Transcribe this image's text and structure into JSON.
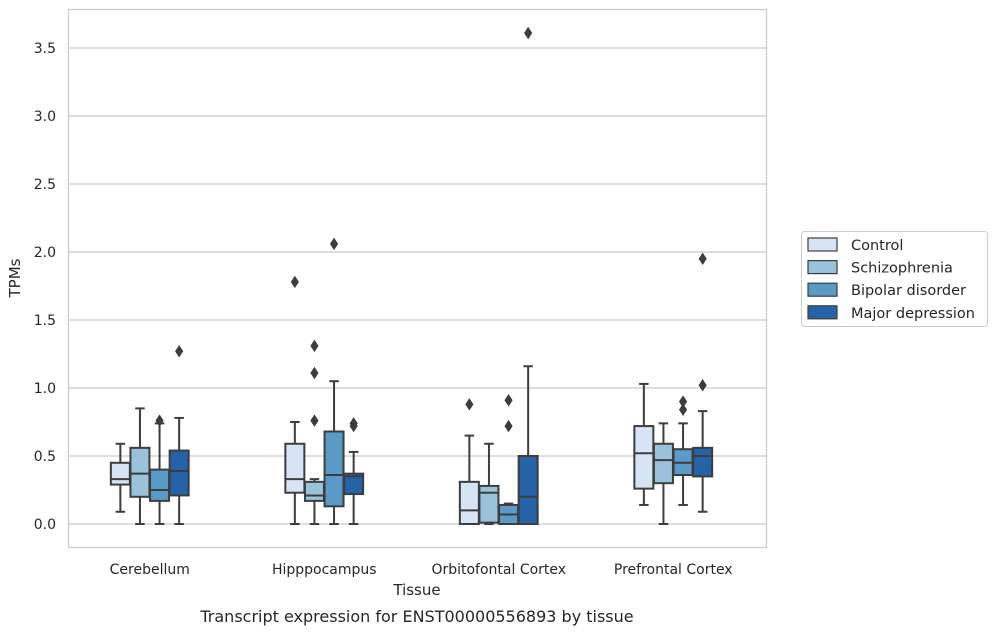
{
  "chart_data": {
    "type": "box",
    "xlabel": "Tissue",
    "ylabel": "TPMs",
    "caption": "Transcript expression for ENST00000556893 by tissue",
    "ylim": [
      -0.18,
      3.75
    ],
    "yticks": [
      "0.0",
      "0.5",
      "1.0",
      "1.5",
      "2.0",
      "2.5",
      "3.0",
      "3.5"
    ],
    "ytick_values": [
      0.0,
      0.5,
      1.0,
      1.5,
      2.0,
      2.5,
      3.0,
      3.5
    ],
    "grid": "horizontal",
    "legend_position": "right",
    "categories": [
      "Cerebellum",
      "Hipppocampus",
      "Orbitofontal Cortex",
      "Prefrontal Cortex"
    ],
    "series": [
      {
        "name": "Control",
        "color": "#d6e4f3",
        "boxes": [
          {
            "whislo": 0.09,
            "q1": 0.29,
            "med": 0.33,
            "q3": 0.45,
            "whishi": 0.59,
            "fliers": []
          },
          {
            "whislo": 0.0,
            "q1": 0.23,
            "med": 0.33,
            "q3": 0.59,
            "whishi": 0.75,
            "fliers": [
              1.78
            ]
          },
          {
            "whislo": 0.0,
            "q1": 0.0,
            "med": 0.1,
            "q3": 0.31,
            "whishi": 0.65,
            "fliers": [
              0.88
            ]
          },
          {
            "whislo": 0.14,
            "q1": 0.26,
            "med": 0.52,
            "q3": 0.72,
            "whishi": 1.03,
            "fliers": []
          }
        ]
      },
      {
        "name": "Schizophrenia",
        "color": "#9ac2da",
        "boxes": [
          {
            "whislo": 0.0,
            "q1": 0.2,
            "med": 0.37,
            "q3": 0.56,
            "whishi": 0.85,
            "fliers": []
          },
          {
            "whislo": 0.0,
            "q1": 0.17,
            "med": 0.21,
            "q3": 0.31,
            "whishi": 0.33,
            "fliers": [
              0.76,
              1.11,
              1.31
            ]
          },
          {
            "whislo": 0.0,
            "q1": 0.01,
            "med": 0.23,
            "q3": 0.28,
            "whishi": 0.59,
            "fliers": []
          },
          {
            "whislo": 0.0,
            "q1": 0.3,
            "med": 0.47,
            "q3": 0.59,
            "whishi": 0.74,
            "fliers": []
          }
        ]
      },
      {
        "name": "Bipolar disorder",
        "color": "#5a9ac6",
        "boxes": [
          {
            "whislo": 0.0,
            "q1": 0.17,
            "med": 0.25,
            "q3": 0.4,
            "whishi": 0.74,
            "fliers": [
              0.76
            ]
          },
          {
            "whislo": 0.0,
            "q1": 0.13,
            "med": 0.36,
            "q3": 0.68,
            "whishi": 1.05,
            "fliers": [
              2.06
            ]
          },
          {
            "whislo": 0.0,
            "q1": 0.0,
            "med": 0.07,
            "q3": 0.14,
            "whishi": 0.15,
            "fliers": [
              0.72,
              0.91
            ]
          },
          {
            "whislo": 0.14,
            "q1": 0.36,
            "med": 0.45,
            "q3": 0.55,
            "whishi": 0.74,
            "fliers": [
              0.84,
              0.9
            ]
          }
        ]
      },
      {
        "name": "Major depression",
        "color": "#2563a8",
        "boxes": [
          {
            "whislo": 0.0,
            "q1": 0.21,
            "med": 0.39,
            "q3": 0.54,
            "whishi": 0.78,
            "fliers": [
              1.27
            ]
          },
          {
            "whislo": 0.0,
            "q1": 0.22,
            "med": 0.35,
            "q3": 0.37,
            "whishi": 0.53,
            "fliers": [
              0.72,
              0.74
            ]
          },
          {
            "whislo": 0.0,
            "q1": 0.0,
            "med": 0.2,
            "q3": 0.5,
            "whishi": 1.16,
            "fliers": [
              3.61
            ]
          },
          {
            "whislo": 0.09,
            "q1": 0.35,
            "med": 0.5,
            "q3": 0.56,
            "whishi": 0.83,
            "fliers": [
              1.02,
              1.95
            ]
          }
        ]
      }
    ]
  }
}
